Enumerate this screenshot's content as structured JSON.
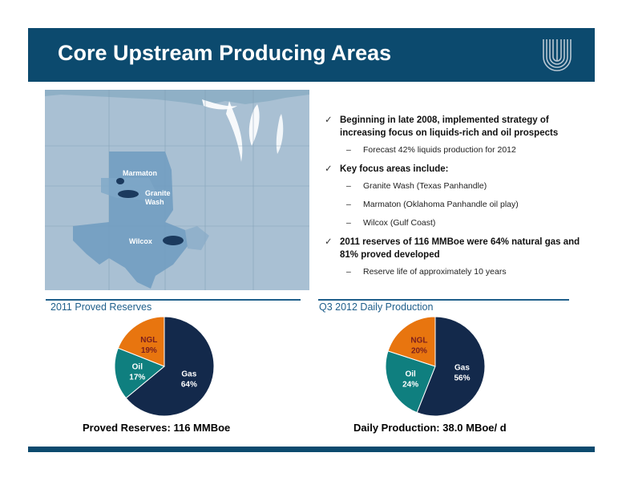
{
  "header": {
    "title": "Core Upstream Producing Areas"
  },
  "map": {
    "labels": {
      "marmaton": "Marmaton",
      "granite": "Granite",
      "wash": "Wash",
      "wilcox": "Wilcox"
    }
  },
  "bullets": [
    {
      "text": "Beginning in late 2008, implemented strategy of increasing focus on liquids-rich and oil prospects",
      "subs": [
        "Forecast 42% liquids production for 2012"
      ]
    },
    {
      "text": "Key focus areas include:",
      "subs": [
        "Granite Wash (Texas Panhandle)",
        "Marmaton (Oklahoma Panhandle oil play)",
        "Wilcox (Gulf Coast)"
      ]
    },
    {
      "text": "2011 reserves of 116 MMBoe were 64% natural gas and 81% proved developed",
      "subs": [
        "Reserve life of approximately 10 years"
      ]
    }
  ],
  "sections": {
    "left_title": "2011 Proved Reserves",
    "right_title": "Q3 2012 Daily Production",
    "left_caption": "Proved Reserves: 116 MMBoe",
    "right_caption": "Daily Production: 38.0 MBoe/ d"
  },
  "colors": {
    "gas": "#13294b",
    "oil": "#0f7f7f",
    "ngl": "#e8750f",
    "header": "#0c4a6e"
  },
  "chart_data": [
    {
      "type": "pie",
      "title": "2011 Proved Reserves",
      "slices": [
        {
          "label": "Gas",
          "value": 64,
          "display": "64%"
        },
        {
          "label": "Oil",
          "value": 17,
          "display": "17%"
        },
        {
          "label": "NGL",
          "value": 19,
          "display": "19%"
        }
      ]
    },
    {
      "type": "pie",
      "title": "Q3 2012 Daily Production",
      "slices": [
        {
          "label": "Gas",
          "value": 56,
          "display": "56%"
        },
        {
          "label": "Oil",
          "value": 24,
          "display": "24%"
        },
        {
          "label": "NGL",
          "value": 20,
          "display": "20%"
        }
      ]
    }
  ]
}
